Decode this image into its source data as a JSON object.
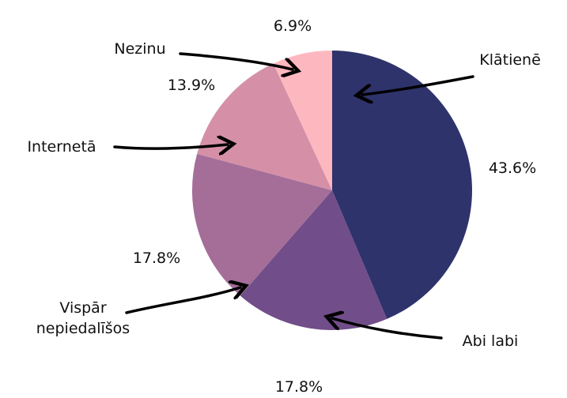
{
  "chart_data": {
    "type": "pie",
    "categories": [
      "Klātienē",
      "Abi labi",
      "Vispār nepiedalīšos",
      "Internetā",
      "Nezinu"
    ],
    "values": [
      43.6,
      17.8,
      17.8,
      13.9,
      6.9
    ],
    "value_labels": [
      "43.6%",
      "17.8%",
      "17.8%",
      "13.9%",
      "6.9%"
    ],
    "colors": [
      "#2f336b",
      "#714d89",
      "#a46e98",
      "#d590a8",
      "#fdb8bf"
    ]
  }
}
